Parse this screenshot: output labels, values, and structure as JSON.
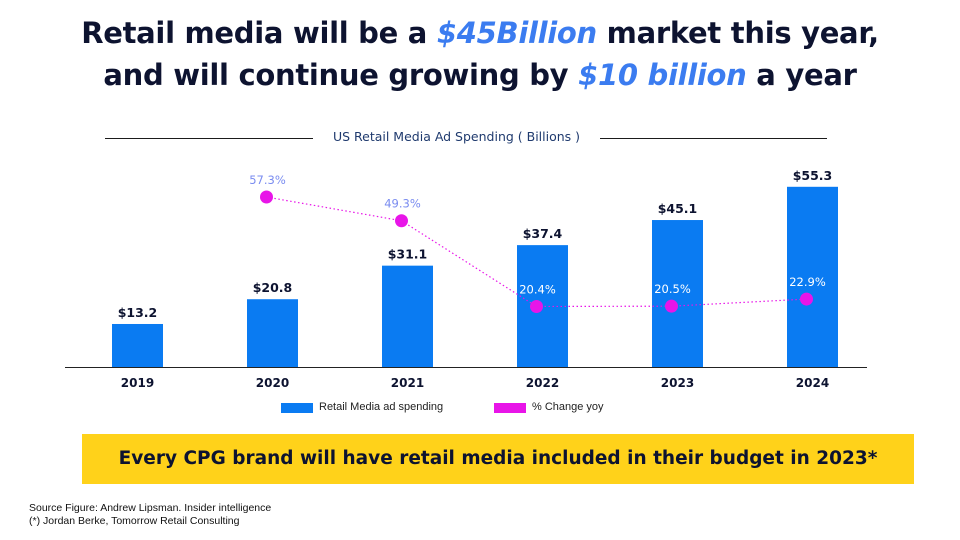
{
  "headline": {
    "line1_pre": "Retail media will be a ",
    "line1_highlight": "$45Billion",
    "line1_post": " market this year,",
    "line2_pre": "and will continue growing by ",
    "line2_highlight": "$10 billion",
    "line2_post": " a year"
  },
  "colors": {
    "bars": "#0a7bf2",
    "yoy_points": "#e815e8",
    "highlight": "#3b7cf0",
    "callout_bg": "#ffd21a",
    "yoy_label_above": "#7a8cf0",
    "yoy_label_inside": "#ffffff"
  },
  "chart_data": {
    "type": "bar",
    "title": "US Retail Media Ad Spending ( Billions )",
    "categories": [
      "2019",
      "2020",
      "2021",
      "2022",
      "2023",
      "2024"
    ],
    "series": [
      {
        "name": "Retail Media ad spending",
        "type": "bar",
        "values": [
          13.2,
          20.8,
          31.1,
          37.4,
          45.1,
          55.3
        ],
        "labels": [
          "$13.2",
          "$20.8",
          "$31.1",
          "$37.4",
          "$45.1",
          "$55.3"
        ]
      },
      {
        "name": "% Change yoy",
        "type": "line",
        "values": [
          null,
          57.3,
          49.3,
          20.4,
          20.5,
          22.9
        ],
        "labels": [
          "",
          "57.3%",
          "49.3%",
          "20.4%",
          "20.5%",
          "22.9%"
        ],
        "line_style": "dotted"
      }
    ],
    "ylim": [
      0,
      58
    ],
    "yoy_ylim": [
      0,
      90
    ],
    "legend_position": "bottom"
  },
  "callout": {
    "text": "Every CPG brand will have retail media included in their budget in 2023*"
  },
  "source": {
    "line1": "Source Figure: Andrew Lipsman. Insider intelligence",
    "line2": "(*) Jordan Berke, Tomorrow Retail Consulting"
  }
}
